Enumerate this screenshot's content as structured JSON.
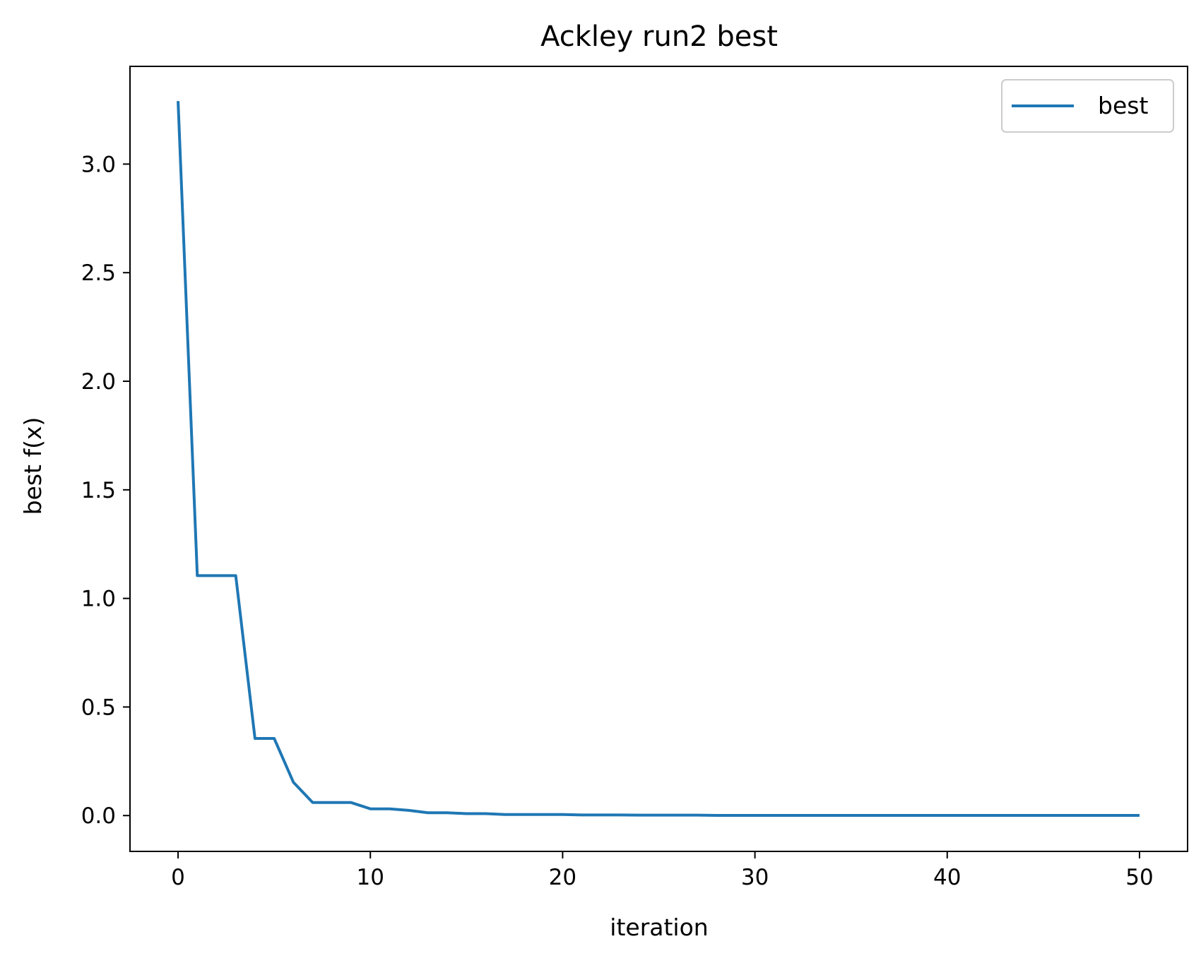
{
  "chart_data": {
    "type": "line",
    "title": "Ackley run2 best",
    "xlabel": "iteration",
    "ylabel": "best f(x)",
    "xlim": [
      -2.5,
      52.5
    ],
    "ylim": [
      -0.165,
      3.45
    ],
    "xticks": [
      0,
      10,
      20,
      30,
      40,
      50
    ],
    "yticks": [
      0.0,
      0.5,
      1.0,
      1.5,
      2.0,
      2.5,
      3.0
    ],
    "xtick_labels": [
      "0",
      "10",
      "20",
      "30",
      "40",
      "50"
    ],
    "ytick_labels": [
      "0.0",
      "0.5",
      "1.0",
      "1.5",
      "2.0",
      "2.5",
      "3.0"
    ],
    "grid": false,
    "legend": {
      "position": "top-right",
      "entries": [
        "best"
      ]
    },
    "series": [
      {
        "name": "best",
        "color": "#1f77b4",
        "x": [
          0,
          1,
          2,
          3,
          4,
          5,
          6,
          7,
          8,
          9,
          10,
          11,
          12,
          13,
          14,
          15,
          16,
          17,
          18,
          19,
          20,
          21,
          22,
          23,
          24,
          25,
          26,
          27,
          28,
          29,
          30,
          31,
          32,
          33,
          34,
          35,
          36,
          37,
          38,
          39,
          40,
          41,
          42,
          43,
          44,
          45,
          46,
          47,
          48,
          49,
          50
        ],
        "y": [
          3.29,
          1.105,
          1.105,
          1.105,
          0.355,
          0.355,
          0.153,
          0.06,
          0.06,
          0.06,
          0.031,
          0.031,
          0.024,
          0.013,
          0.013,
          0.009,
          0.009,
          0.005,
          0.005,
          0.005,
          0.005,
          0.003,
          0.003,
          0.003,
          0.002,
          0.002,
          0.002,
          0.002,
          0.001,
          0.001,
          0.001,
          0.001,
          0.001,
          0.001,
          0.001,
          0.001,
          0.001,
          0.001,
          0.001,
          0.001,
          0.001,
          0.001,
          0.001,
          0.001,
          0.001,
          0.001,
          0.001,
          0.001,
          0.001,
          0.001,
          0.001
        ]
      }
    ]
  }
}
